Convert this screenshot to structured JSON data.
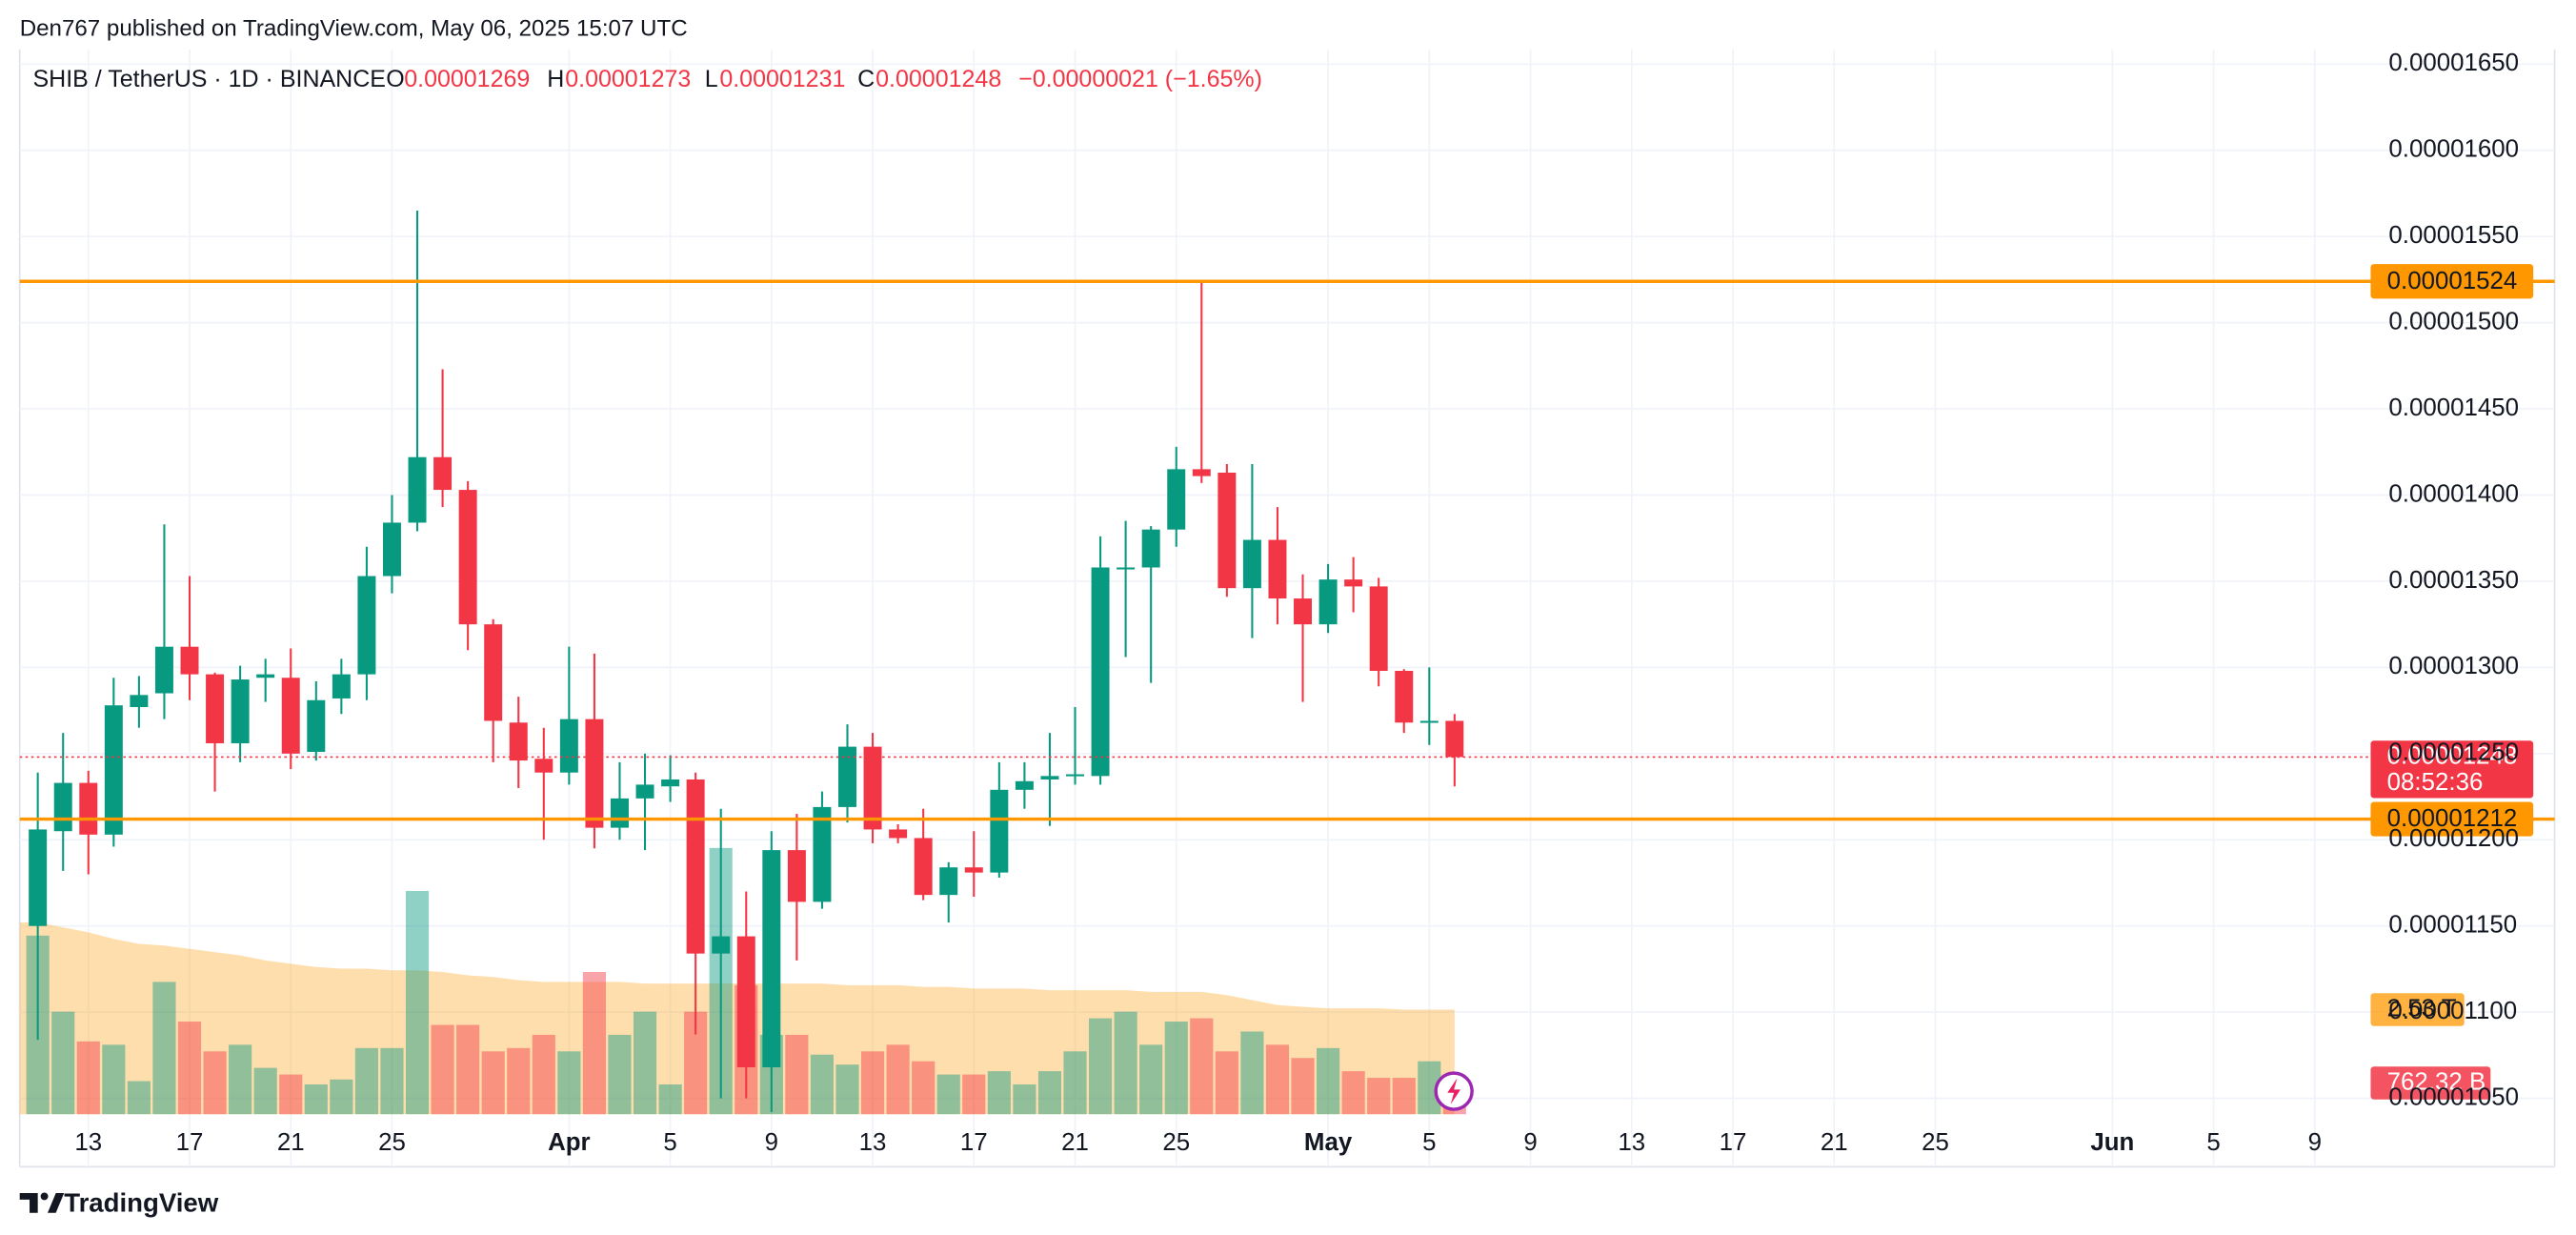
{
  "header": {
    "published": "Den767 published on TradingView.com, May 06, 2025 15:07 UTC"
  },
  "footer": {
    "brand": "TradingView"
  },
  "chart_data": {
    "type": "candlestick",
    "title": "SHIB / TetherUS · 1D · BINANCE",
    "legend_keys": [
      "O",
      "H",
      "L",
      "C"
    ],
    "change": "−0.00000021 (−1.65%)",
    "up_color": "#089981",
    "down_color": "#f23645",
    "categories": [
      null,
      null,
      "13",
      null,
      null,
      null,
      "17",
      null,
      null,
      null,
      "21",
      null,
      null,
      null,
      "25",
      null,
      null,
      null,
      null,
      null,
      null,
      "Apr",
      null,
      null,
      null,
      "5",
      null,
      null,
      null,
      "9",
      null,
      null,
      null,
      "13",
      null,
      null,
      null,
      "17",
      null,
      null,
      null,
      "21",
      null,
      null,
      null,
      "25",
      null,
      null,
      null,
      null,
      null,
      "May",
      null,
      null,
      null,
      "5",
      null,
      null,
      null,
      "9",
      null,
      null,
      null,
      "13",
      null,
      null,
      null,
      "17",
      null,
      null,
      null,
      "21",
      null,
      null,
      null,
      "25",
      null,
      null,
      null,
      null,
      null,
      null,
      "Jun",
      null,
      null,
      null,
      "5",
      null,
      null,
      null,
      "9",
      null,
      null
    ],
    "open": [
      1.15e-05,
      1.205e-05,
      1.233e-05,
      1.203e-05,
      1.277e-05,
      1.285e-05,
      1.312e-05,
      1.296e-05,
      1.256e-05,
      1.294e-05,
      1.294e-05,
      1.251e-05,
      1.282e-05,
      1.296e-05,
      1.353e-05,
      1.384e-05,
      1.422e-05,
      1.403e-05,
      1.325e-05,
      1.268e-05,
      1.247e-05,
      1.239e-05,
      1.27e-05,
      1.207e-05,
      1.224e-05,
      1.231e-05,
      1.235e-05,
      1.134e-05,
      1.144e-05,
      1.068e-05,
      1.194e-05,
      1.164e-05,
      1.219e-05,
      1.254e-05,
      1.206e-05,
      1.201e-05,
      1.168e-05,
      1.184e-05,
      1.181e-05,
      1.229e-05,
      1.235e-05,
      1.237e-05,
      1.237e-05,
      1.357e-05,
      1.358e-05,
      1.38e-05,
      1.415e-05,
      1.413e-05,
      1.346e-05,
      1.374e-05,
      1.34e-05,
      1.325e-05,
      1.351e-05,
      1.347e-05,
      1.298e-05,
      1.268e-05,
      1.269e-05,
      null,
      null,
      null,
      null,
      null,
      null,
      null,
      null,
      null,
      null,
      null,
      null,
      null,
      null,
      null,
      null,
      null,
      null,
      null,
      null,
      null,
      null,
      null,
      null,
      null,
      null,
      null,
      null,
      null,
      null,
      null,
      null,
      null,
      null,
      null,
      null
    ],
    "high": [
      1.239e-05,
      1.262e-05,
      1.24e-05,
      1.294e-05,
      1.295e-05,
      1.383e-05,
      1.353e-05,
      1.297e-05,
      1.301e-05,
      1.305e-05,
      1.311e-05,
      1.292e-05,
      1.305e-05,
      1.37e-05,
      1.4e-05,
      1.565e-05,
      1.473e-05,
      1.408e-05,
      1.328e-05,
      1.283e-05,
      1.265e-05,
      1.312e-05,
      1.308e-05,
      1.245e-05,
      1.25e-05,
      1.249e-05,
      1.239e-05,
      1.218e-05,
      1.17e-05,
      1.205e-05,
      1.215e-05,
      1.228e-05,
      1.267e-05,
      1.262e-05,
      1.209e-05,
      1.218e-05,
      1.187e-05,
      1.205e-05,
      1.245e-05,
      1.245e-05,
      1.262e-05,
      1.277e-05,
      1.376e-05,
      1.385e-05,
      1.382e-05,
      1.428e-05,
      1.524e-05,
      1.418e-05,
      1.418e-05,
      1.393e-05,
      1.354e-05,
      1.36e-05,
      1.364e-05,
      1.352e-05,
      1.299e-05,
      1.3e-05,
      1.273e-05,
      null,
      null,
      null,
      null,
      null,
      null,
      null,
      null,
      null,
      null,
      null,
      null,
      null,
      null,
      null,
      null,
      null,
      null,
      null,
      null,
      null,
      null,
      null,
      null,
      null,
      null,
      null,
      null,
      null,
      null,
      null,
      null,
      null,
      null,
      null,
      null
    ],
    "low": [
      1.084e-05,
      1.182e-05,
      1.18e-05,
      1.196e-05,
      1.265e-05,
      1.27e-05,
      1.281e-05,
      1.228e-05,
      1.245e-05,
      1.28e-05,
      1.241e-05,
      1.246e-05,
      1.273e-05,
      1.281e-05,
      1.343e-05,
      1.379e-05,
      1.393e-05,
      1.31e-05,
      1.245e-05,
      1.23e-05,
      1.2e-05,
      1.232e-05,
      1.195e-05,
      1.2e-05,
      1.194e-05,
      1.222e-05,
      1.087e-05,
      1.05e-05,
      1.05e-05,
      1.042e-05,
      1.13e-05,
      1.16e-05,
      1.21e-05,
      1.198e-05,
      1.198e-05,
      1.165e-05,
      1.152e-05,
      1.167e-05,
      1.178e-05,
      1.218e-05,
      1.208e-05,
      1.232e-05,
      1.232e-05,
      1.306e-05,
      1.291e-05,
      1.37e-05,
      1.407e-05,
      1.341e-05,
      1.317e-05,
      1.325e-05,
      1.28e-05,
      1.32e-05,
      1.332e-05,
      1.289e-05,
      1.262e-05,
      1.255e-05,
      1.231e-05,
      null,
      null,
      null,
      null,
      null,
      null,
      null,
      null,
      null,
      null,
      null,
      null,
      null,
      null,
      null,
      null,
      null,
      null,
      null,
      null,
      null,
      null,
      null,
      null,
      null,
      null,
      null,
      null,
      null,
      null,
      null,
      null,
      null,
      null,
      null,
      null
    ],
    "close": [
      1.206e-05,
      1.233e-05,
      1.203e-05,
      1.278e-05,
      1.284e-05,
      1.312e-05,
      1.296e-05,
      1.256e-05,
      1.293e-05,
      1.296e-05,
      1.25e-05,
      1.281e-05,
      1.296e-05,
      1.353e-05,
      1.384e-05,
      1.422e-05,
      1.403e-05,
      1.325e-05,
      1.269e-05,
      1.246e-05,
      1.239e-05,
      1.27e-05,
      1.207e-05,
      1.224e-05,
      1.232e-05,
      1.235e-05,
      1.134e-05,
      1.144e-05,
      1.068e-05,
      1.194e-05,
      1.164e-05,
      1.219e-05,
      1.254e-05,
      1.206e-05,
      1.201e-05,
      1.168e-05,
      1.184e-05,
      1.181e-05,
      1.229e-05,
      1.234e-05,
      1.237e-05,
      1.238e-05,
      1.358e-05,
      1.358e-05,
      1.38e-05,
      1.415e-05,
      1.411e-05,
      1.346e-05,
      1.374e-05,
      1.34e-05,
      1.325e-05,
      1.351e-05,
      1.347e-05,
      1.298e-05,
      1.268e-05,
      1.269e-05,
      1.248e-05,
      null,
      null,
      null,
      null,
      null,
      null,
      null,
      null,
      null,
      null,
      null,
      null,
      null,
      null,
      null,
      null,
      null,
      null,
      null,
      null,
      null,
      null,
      null,
      null,
      null,
      null,
      null,
      null,
      null,
      null,
      null,
      null,
      null,
      null,
      null,
      null
    ],
    "volume": {
      "values": [
        4320,
        2480,
        1760,
        1680,
        800,
        3200,
        2240,
        1520,
        1680,
        1120,
        960,
        720,
        840,
        1600,
        1600,
        5400,
        2160,
        2160,
        1520,
        1600,
        1920,
        1520,
        3440,
        1920,
        2480,
        720,
        2480,
        6440,
        3120,
        1920,
        1920,
        1440,
        1200,
        1520,
        1680,
        1280,
        960,
        960,
        1040,
        720,
        1040,
        1520,
        2320,
        2480,
        1680,
        2240,
        2320,
        1520,
        2000,
        1680,
        1360,
        1600,
        1040,
        880,
        880,
        1280,
        762.32,
        null,
        null,
        null,
        null,
        null,
        null,
        null,
        null,
        null,
        null,
        null,
        null,
        null,
        null,
        null,
        null,
        null,
        null,
        null,
        null,
        null,
        null,
        null,
        null,
        null,
        null,
        null,
        null,
        null,
        null,
        null,
        null,
        null,
        null,
        null,
        null
      ],
      "ma_values": [
        4640,
        4520,
        4400,
        4240,
        4120,
        4080,
        4000,
        3920,
        3840,
        3720,
        3640,
        3560,
        3520,
        3520,
        3480,
        3480,
        3440,
        3360,
        3320,
        3240,
        3200,
        3200,
        3200,
        3200,
        3160,
        3160,
        3160,
        3160,
        3160,
        3160,
        3160,
        3160,
        3120,
        3120,
        3120,
        3080,
        3080,
        3040,
        3040,
        3040,
        3000,
        3000,
        3000,
        3000,
        2960,
        2960,
        2960,
        2880,
        2760,
        2640,
        2600,
        2560,
        2560,
        2560,
        2530,
        2530,
        2530,
        null,
        null,
        null,
        null,
        null,
        null,
        null,
        null,
        null,
        null,
        null,
        null,
        null,
        null,
        null,
        null,
        null,
        null,
        null,
        null,
        null,
        null,
        null,
        null,
        null,
        null,
        null,
        null,
        null,
        null,
        null,
        null,
        null,
        null,
        null,
        null
      ],
      "last_value_label": "762.32 B",
      "ma_last_label": "2.53 T",
      "ma_color": "#ff9800"
    },
    "ylim": [
      1.0408e-05,
      1.6586e-05
    ],
    "yticks": [
      {
        "value": 1.05e-05,
        "label": "0.00001050"
      },
      {
        "value": 1.1e-05,
        "label": "0.00001100"
      },
      {
        "value": 1.15e-05,
        "label": "0.00001150"
      },
      {
        "value": 1.2e-05,
        "label": "0.00001200"
      },
      {
        "value": 1.25e-05,
        "label": "0.00001250"
      },
      {
        "value": 1.3e-05,
        "label": "0.00001300"
      },
      {
        "value": 1.35e-05,
        "label": "0.00001350"
      },
      {
        "value": 1.4e-05,
        "label": "0.00001400"
      },
      {
        "value": 1.45e-05,
        "label": "0.00001450"
      },
      {
        "value": 1.5e-05,
        "label": "0.00001500"
      },
      {
        "value": 1.55e-05,
        "label": "0.00001550"
      },
      {
        "value": 1.6e-05,
        "label": "0.00001600"
      },
      {
        "value": 1.65e-05,
        "label": "0.00001650"
      }
    ],
    "grid": true,
    "levels": [
      {
        "value": 1.524e-05,
        "color": "#ff9800"
      },
      {
        "value": 1.212e-05,
        "color": "#ff9800"
      }
    ],
    "last_price": {
      "value": 1.248e-05,
      "countdown": "08:52:36"
    }
  }
}
